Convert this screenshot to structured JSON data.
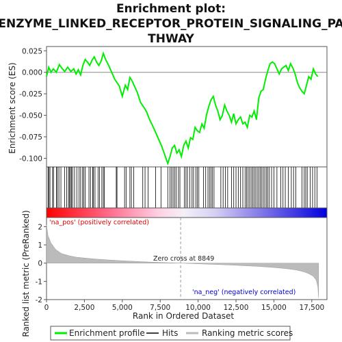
{
  "chart_data": {
    "type": "line",
    "title_lines": [
      "Enrichment plot:",
      "ENZYME_LINKED_RECEPTOR_PROTEIN_SIGNALING_PA",
      "THWAY"
    ],
    "top_panel": {
      "ylabel": "Enrichment score (ES)",
      "ylim": [
        -0.11,
        0.03
      ],
      "yticks": [
        0.025,
        0.0,
        -0.025,
        -0.05,
        -0.075,
        -0.1
      ],
      "ytick_labels": [
        "0.025",
        "0.000",
        "-0.025",
        "-0.050",
        "-0.075",
        "-0.100"
      ],
      "series": [
        {
          "name": "Enrichment profile",
          "color": "#00ee00",
          "x": [
            0,
            150,
            300,
            450,
            650,
            850,
            1000,
            1200,
            1400,
            1600,
            1800,
            1950,
            2100,
            2250,
            2400,
            2550,
            2700,
            2850,
            3000,
            3150,
            3300,
            3450,
            3600,
            3750,
            3900,
            4100,
            4300,
            4500,
            4650,
            4800,
            5000,
            5200,
            5350,
            5500,
            5650,
            5800,
            6000,
            6200,
            6400,
            6600,
            6800,
            7000,
            7200,
            7400,
            7600,
            7800,
            8000,
            8150,
            8300,
            8450,
            8600,
            8750,
            8900,
            9050,
            9200,
            9350,
            9500,
            9650,
            9800,
            9950,
            10100,
            10250,
            10400,
            10550,
            10700,
            10850,
            11000,
            11150,
            11300,
            11450,
            11600,
            11750,
            11900,
            12050,
            12200,
            12350,
            12500,
            12650,
            12800,
            12950,
            13100,
            13250,
            13400,
            13550,
            13700,
            13850,
            14000,
            14150,
            14300,
            14450,
            14600,
            14750,
            14900,
            15050,
            15200,
            15350,
            15500,
            15650,
            15800,
            15950,
            16100,
            16250,
            16400,
            16550,
            16700,
            16850,
            17000,
            17150,
            17300,
            17450,
            17600,
            17750,
            17900
          ],
          "values": [
            -0.005,
            0.006,
            0.0,
            0.004,
            0.0,
            0.009,
            0.005,
            0.001,
            0.006,
            0.001,
            0.004,
            -0.002,
            0.003,
            -0.003,
            0.008,
            0.015,
            0.012,
            0.008,
            0.014,
            0.018,
            0.012,
            0.008,
            0.013,
            0.022,
            0.015,
            0.008,
            0.0,
            -0.008,
            -0.012,
            -0.016,
            -0.028,
            -0.015,
            -0.02,
            -0.006,
            -0.01,
            -0.016,
            -0.024,
            -0.035,
            -0.04,
            -0.046,
            -0.055,
            -0.062,
            -0.07,
            -0.078,
            -0.086,
            -0.096,
            -0.106,
            -0.098,
            -0.088,
            -0.085,
            -0.094,
            -0.09,
            -0.098,
            -0.085,
            -0.08,
            -0.088,
            -0.076,
            -0.078,
            -0.064,
            -0.068,
            -0.07,
            -0.06,
            -0.065,
            -0.05,
            -0.04,
            -0.032,
            -0.028,
            -0.038,
            -0.045,
            -0.055,
            -0.05,
            -0.038,
            -0.045,
            -0.05,
            -0.058,
            -0.048,
            -0.06,
            -0.055,
            -0.052,
            -0.06,
            -0.058,
            -0.064,
            -0.05,
            -0.052,
            -0.045,
            -0.055,
            -0.03,
            -0.022,
            -0.02,
            -0.008,
            0.002,
            0.01,
            0.012,
            0.01,
            0.004,
            -0.002,
            0.004,
            0.006,
            0.008,
            0.002,
            0.01,
            0.005,
            -0.002,
            -0.012,
            -0.018,
            -0.022,
            -0.025,
            -0.015,
            -0.005,
            -0.008,
            0.004,
            -0.002,
            -0.005
          ]
        }
      ]
    },
    "hits": {
      "name": "Hits",
      "color": "#000000",
      "x": [
        100,
        160,
        230,
        400,
        460,
        650,
        720,
        820,
        950,
        1200,
        1330,
        1450,
        1520,
        1580,
        1650,
        1720,
        1850,
        2000,
        2150,
        2250,
        2380,
        2450,
        2550,
        2800,
        2900,
        3050,
        3100,
        3200,
        3400,
        3500,
        3650,
        3750,
        3820,
        4600,
        4650,
        5150,
        5250,
        5500,
        5600,
        5750,
        6350,
        6500,
        6700,
        7200,
        7550,
        8000,
        8150,
        8250,
        8350,
        8450,
        8550,
        8700,
        8800,
        9100,
        9200,
        9300,
        9450,
        9600,
        9700,
        9850,
        9950,
        10050,
        10350,
        10500,
        10650,
        10750,
        10850,
        10950,
        11050,
        11500,
        11650,
        11800,
        11950,
        12200,
        12350,
        12500,
        12650,
        12800,
        12950,
        13100,
        13200,
        13300,
        13400,
        13500,
        13600,
        13700,
        13800,
        13900,
        14000,
        14100,
        14200,
        14300,
        14400,
        14500,
        14600,
        14700,
        14850,
        15000,
        15200,
        15450,
        15600,
        15750,
        15950,
        16150,
        16300,
        16450,
        16850,
        17000,
        17100,
        17200,
        17400,
        17550,
        17700,
        17850
      ]
    },
    "ranked_metric": {
      "name": "Ranking metric scores",
      "ylabel": "Ranked list metric (PreRanked)",
      "ylim": [
        -2,
        2.5
      ],
      "yticks": [
        2,
        1,
        0,
        -1,
        -2
      ],
      "color": "#bbbbbb",
      "x": [
        0,
        100,
        300,
        600,
        1000,
        1500,
        2000,
        3000,
        4000,
        5000,
        6000,
        7000,
        8000,
        8849,
        10000,
        11000,
        12000,
        13000,
        14000,
        15000,
        15800,
        16500,
        17000,
        17300,
        17600,
        17800,
        17900,
        17950
      ],
      "values": [
        2.1,
        1.5,
        1.1,
        0.75,
        0.52,
        0.4,
        0.32,
        0.24,
        0.18,
        0.13,
        0.09,
        0.05,
        0.02,
        0.0,
        -0.04,
        -0.07,
        -0.1,
        -0.14,
        -0.18,
        -0.24,
        -0.3,
        -0.38,
        -0.48,
        -0.58,
        -0.72,
        -0.95,
        -1.3,
        -1.9
      ]
    },
    "x_axis": {
      "xlabel": "Rank in Ordered Dataset",
      "xlim": [
        0,
        18500
      ],
      "xticks": [
        0,
        2500,
        5000,
        7500,
        10000,
        12500,
        15000,
        17500
      ],
      "xtick_labels": [
        "0",
        "2,500",
        "5,000",
        "7,500",
        "10,000",
        "12,500",
        "15,000",
        "17,500"
      ]
    },
    "annotations": {
      "pos_label": "'na_pos' (positively correlated)",
      "neg_label": "'na_neg' (negatively correlated)",
      "zero_cross_label": "Zero cross at 8849",
      "zero_cross_x": 8849,
      "pos_color": "#dd0000",
      "neg_color": "#0000cc"
    },
    "legend": {
      "placement": "bottom",
      "items": [
        {
          "label": "Enrichment profile",
          "color": "#00ee00"
        },
        {
          "label": "Hits",
          "color": "#000000"
        },
        {
          "label": "Ranking metric scores",
          "color": "#bbbbbb"
        }
      ]
    }
  }
}
